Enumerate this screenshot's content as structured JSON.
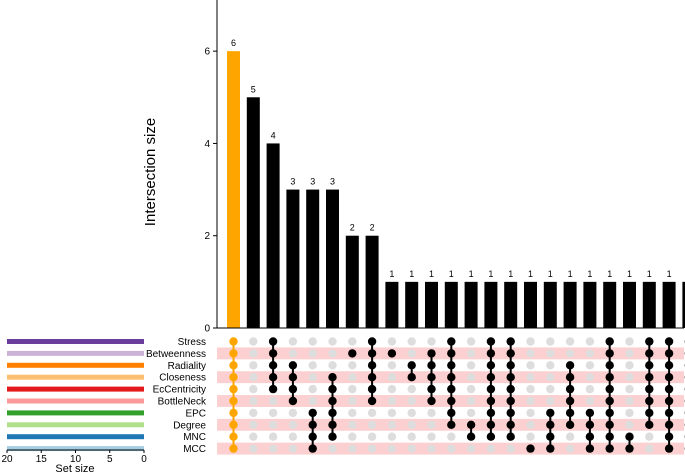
{
  "chart_data": {
    "type": "upset",
    "title": "",
    "ylabel": "Intersection size",
    "ylim": [
      0,
      7
    ],
    "y_ticks": [
      0,
      2,
      4,
      6
    ],
    "set_size_xlabel": "Set size",
    "set_size_xlim": [
      20,
      0
    ],
    "set_size_ticks": [
      20,
      15,
      10,
      5,
      0
    ],
    "sets": [
      {
        "name": "Stress",
        "size": 20,
        "color": "#6a3d9a"
      },
      {
        "name": "Betweenness",
        "size": 20,
        "color": "#cab2d6"
      },
      {
        "name": "Radiality",
        "size": 20,
        "color": "#ff7f00"
      },
      {
        "name": "Closeness",
        "size": 20,
        "color": "#fdbf6f"
      },
      {
        "name": "EcCentricity",
        "size": 20,
        "color": "#e31a1c"
      },
      {
        "name": "BottleNeck",
        "size": 20,
        "color": "#fb9a99"
      },
      {
        "name": "EPC",
        "size": 20,
        "color": "#33a02c"
      },
      {
        "name": "Degree",
        "size": 20,
        "color": "#b2df8a"
      },
      {
        "name": "MNC",
        "size": 20,
        "color": "#1f78b4"
      },
      {
        "name": "MCC",
        "size": 20,
        "color": "#a6cee3"
      }
    ],
    "highlight_color": "#ffa500",
    "bar_color": "#000000",
    "inactive_dot_color": "#dddddd",
    "stripe_color": "#fcd0d0",
    "intersections": [
      {
        "size": 6,
        "members": [
          0,
          1,
          2,
          3,
          4,
          5,
          6,
          7,
          8,
          9
        ],
        "highlight": true
      },
      {
        "size": 5,
        "members": []
      },
      {
        "size": 4,
        "members": [
          0,
          1,
          2,
          3,
          4
        ]
      },
      {
        "size": 3,
        "members": [
          2,
          3,
          4,
          5
        ]
      },
      {
        "size": 3,
        "members": [
          6,
          7,
          8,
          9
        ]
      },
      {
        "size": 3,
        "members": [
          3,
          4,
          5,
          6,
          7,
          8
        ]
      },
      {
        "size": 2,
        "members": [
          1
        ]
      },
      {
        "size": 2,
        "members": [
          0,
          1,
          2,
          3,
          4,
          5
        ]
      },
      {
        "size": 1,
        "members": [
          1
        ]
      },
      {
        "size": 1,
        "members": [
          2,
          3
        ]
      },
      {
        "size": 1,
        "members": [
          1,
          2,
          3,
          4,
          5
        ]
      },
      {
        "size": 1,
        "members": [
          0,
          1,
          2,
          3,
          4,
          5,
          6,
          7
        ]
      },
      {
        "size": 1,
        "members": [
          7,
          8
        ]
      },
      {
        "size": 1,
        "members": [
          0,
          1,
          2,
          3,
          4,
          5,
          6,
          7,
          8
        ]
      },
      {
        "size": 1,
        "members": [
          0,
          1,
          2,
          3,
          4,
          5,
          6,
          7,
          8
        ]
      },
      {
        "size": 1,
        "members": [
          9
        ]
      },
      {
        "size": 1,
        "members": [
          6,
          7,
          8,
          9
        ]
      },
      {
        "size": 1,
        "members": [
          2,
          3,
          4,
          5,
          6,
          7
        ]
      },
      {
        "size": 1,
        "members": [
          6,
          7,
          8,
          9
        ]
      },
      {
        "size": 1,
        "members": [
          0,
          1,
          2,
          3,
          4,
          5,
          6,
          7,
          8,
          9
        ]
      },
      {
        "size": 1,
        "members": [
          8,
          9
        ]
      },
      {
        "size": 1,
        "members": [
          0,
          1,
          2,
          3,
          4,
          5,
          6,
          7
        ]
      },
      {
        "size": 1,
        "members": [
          0,
          1,
          2,
          3,
          4,
          5,
          6,
          7,
          8,
          9
        ]
      },
      {
        "size": 1,
        "members": [
          0,
          1,
          2,
          3,
          4,
          5,
          6,
          7,
          8,
          9
        ]
      }
    ]
  }
}
